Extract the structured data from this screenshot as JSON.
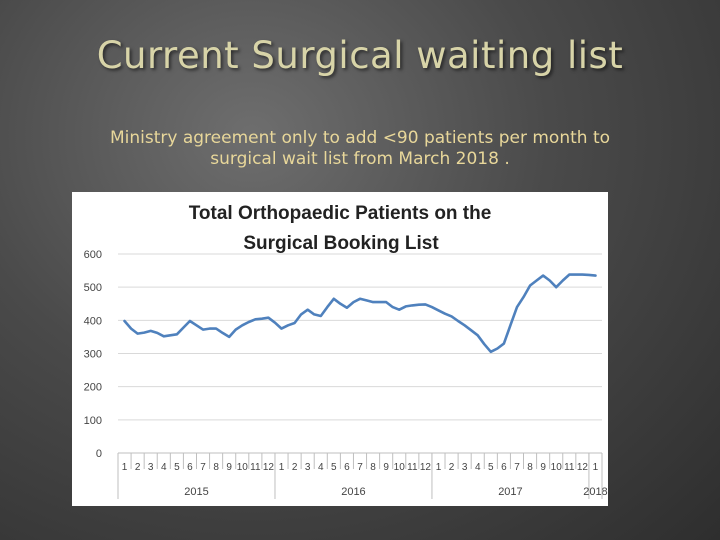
{
  "slide": {
    "title": "Current Surgical waiting list",
    "subtitle_line1": "Ministry agreement only to add <90 patients per month to",
    "subtitle_line2": "surgical wait list from March 2018 ."
  },
  "colors": {
    "line": "#4f81bd",
    "title_text": "#d8d4a8",
    "subtitle_text": "#e8d79a",
    "grid": "#d9d9d9"
  },
  "chart_data": {
    "type": "line",
    "title_line1": "Total Orthopaedic Patients on the",
    "title_line2": "Surgical Booking List",
    "xlabel": "",
    "ylabel": "",
    "ylim": [
      0,
      600
    ],
    "yticks": [
      0,
      100,
      200,
      300,
      400,
      500,
      600
    ],
    "grid": true,
    "legend": "none",
    "month_labels": [
      "1",
      "2",
      "3",
      "4",
      "5",
      "6",
      "7",
      "8",
      "9",
      "10",
      "11",
      "12",
      "1",
      "2",
      "3",
      "4",
      "5",
      "6",
      "7",
      "8",
      "9",
      "10",
      "11",
      "12",
      "1",
      "2",
      "3",
      "4",
      "5",
      "6",
      "7",
      "8",
      "9",
      "10",
      "11",
      "12",
      "1"
    ],
    "year_groups": [
      {
        "label": "2015",
        "start": 0,
        "end": 11
      },
      {
        "label": "2016",
        "start": 12,
        "end": 23
      },
      {
        "label": "2017",
        "start": 24,
        "end": 35
      },
      {
        "label": "2018",
        "start": 36,
        "end": 36
      }
    ],
    "x": [
      1,
      1.5,
      2,
      2.5,
      3,
      3.5,
      4,
      4.5,
      5,
      5.5,
      6,
      6.5,
      7,
      7.5,
      8,
      8.5,
      9,
      9.5,
      10,
      10.5,
      11,
      11.5,
      12,
      12.5,
      13,
      13.5,
      14,
      14.5,
      15,
      15.5,
      16,
      16.5,
      17,
      17.5,
      18,
      18.5,
      19,
      19.5,
      20,
      20.5,
      21,
      21.5,
      22,
      22.5,
      23,
      23.5,
      24,
      24.5,
      25,
      25.5,
      26,
      26.5,
      27,
      27.5,
      28,
      28.5,
      29,
      29.5,
      30,
      30.5,
      31,
      31.5,
      32,
      32.5,
      33,
      33.5,
      34,
      34.5,
      35,
      35.5,
      36,
      36.5,
      37
    ],
    "series": [
      {
        "values": [
          398,
          375,
          360,
          363,
          368,
          362,
          352,
          355,
          358,
          378,
          398,
          385,
          372,
          375,
          375,
          362,
          350,
          372,
          385,
          395,
          403,
          405,
          408,
          393,
          375,
          385,
          392,
          418,
          432,
          418,
          413,
          440,
          465,
          450,
          438,
          455,
          465,
          460,
          455,
          455,
          455,
          440,
          432,
          442,
          445,
          447,
          448,
          440,
          430,
          420,
          412,
          398,
          385,
          370,
          355,
          328,
          305,
          315,
          330,
          385,
          440,
          470,
          505,
          520,
          535,
          520,
          500,
          520,
          538,
          538,
          538,
          537,
          535
        ]
      }
    ]
  }
}
